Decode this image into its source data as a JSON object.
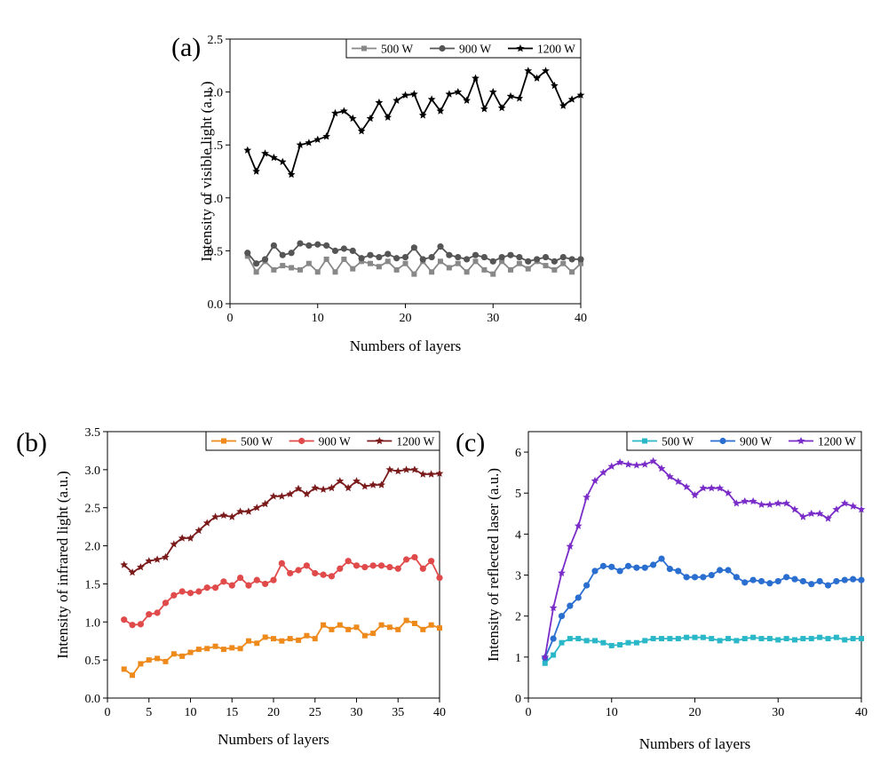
{
  "chart_data": [
    {
      "type": "line",
      "panel": "(a)",
      "xlabel": "Numbers of layers",
      "ylabel": "Intensity of visible light (a.u.)",
      "xlim": [
        0,
        40
      ],
      "ylim": [
        0.0,
        2.5
      ],
      "xticks": [
        0,
        10,
        20,
        30,
        40
      ],
      "yticks": [
        0.0,
        0.5,
        1.0,
        1.5,
        2.0,
        2.5
      ],
      "ytick_decimals": 1,
      "legend_position": "top-right",
      "series": [
        {
          "name": "500 W",
          "color": "#888888",
          "marker": "square",
          "x": [
            2,
            3,
            4,
            5,
            6,
            7,
            8,
            9,
            10,
            11,
            12,
            13,
            14,
            15,
            16,
            17,
            18,
            19,
            20,
            21,
            22,
            23,
            24,
            25,
            26,
            27,
            28,
            29,
            30,
            31,
            32,
            33,
            34,
            35,
            36,
            37,
            38,
            39,
            40
          ],
          "values": [
            0.45,
            0.3,
            0.4,
            0.32,
            0.36,
            0.34,
            0.32,
            0.38,
            0.3,
            0.42,
            0.3,
            0.42,
            0.33,
            0.4,
            0.38,
            0.35,
            0.4,
            0.32,
            0.38,
            0.28,
            0.4,
            0.3,
            0.4,
            0.34,
            0.38,
            0.3,
            0.4,
            0.32,
            0.28,
            0.4,
            0.32,
            0.38,
            0.33,
            0.4,
            0.36,
            0.32,
            0.38,
            0.3,
            0.38
          ]
        },
        {
          "name": "900 W",
          "color": "#555555",
          "marker": "circle",
          "x": [
            2,
            3,
            4,
            5,
            6,
            7,
            8,
            9,
            10,
            11,
            12,
            13,
            14,
            15,
            16,
            17,
            18,
            19,
            20,
            21,
            22,
            23,
            24,
            25,
            26,
            27,
            28,
            29,
            30,
            31,
            32,
            33,
            34,
            35,
            36,
            37,
            38,
            39,
            40
          ],
          "values": [
            0.48,
            0.38,
            0.42,
            0.55,
            0.46,
            0.48,
            0.57,
            0.55,
            0.56,
            0.55,
            0.5,
            0.52,
            0.5,
            0.43,
            0.46,
            0.44,
            0.47,
            0.43,
            0.44,
            0.53,
            0.42,
            0.44,
            0.54,
            0.46,
            0.44,
            0.42,
            0.46,
            0.44,
            0.4,
            0.44,
            0.46,
            0.44,
            0.4,
            0.42,
            0.44,
            0.4,
            0.44,
            0.42,
            0.42
          ]
        },
        {
          "name": "1200 W",
          "color": "#000000",
          "marker": "star",
          "x": [
            2,
            3,
            4,
            5,
            6,
            7,
            8,
            9,
            10,
            11,
            12,
            13,
            14,
            15,
            16,
            17,
            18,
            19,
            20,
            21,
            22,
            23,
            24,
            25,
            26,
            27,
            28,
            29,
            30,
            31,
            32,
            33,
            34,
            35,
            36,
            37,
            38,
            39,
            40
          ],
          "values": [
            1.45,
            1.25,
            1.42,
            1.38,
            1.34,
            1.22,
            1.5,
            1.52,
            1.55,
            1.58,
            1.8,
            1.82,
            1.75,
            1.63,
            1.75,
            1.9,
            1.76,
            1.92,
            1.97,
            1.98,
            1.78,
            1.93,
            1.82,
            1.98,
            2.0,
            1.92,
            2.13,
            1.84,
            2.0,
            1.85,
            1.96,
            1.94,
            2.2,
            2.13,
            2.2,
            2.06,
            1.87,
            1.93,
            1.97
          ]
        }
      ]
    },
    {
      "type": "line",
      "panel": "(b)",
      "xlabel": "Numbers of layers",
      "ylabel": "Intensity of infrared light (a.u.)",
      "xlim": [
        0,
        40
      ],
      "ylim": [
        0.0,
        3.5
      ],
      "xticks": [
        0,
        5,
        10,
        15,
        20,
        25,
        30,
        35,
        40
      ],
      "yticks": [
        0.0,
        0.5,
        1.0,
        1.5,
        2.0,
        2.5,
        3.0,
        3.5
      ],
      "ytick_decimals": 1,
      "legend_position": "top-right",
      "series": [
        {
          "name": "500 W",
          "color": "#ee8a1c",
          "marker": "square",
          "x": [
            2,
            3,
            4,
            5,
            6,
            7,
            8,
            9,
            10,
            11,
            12,
            13,
            14,
            15,
            16,
            17,
            18,
            19,
            20,
            21,
            22,
            23,
            24,
            25,
            26,
            27,
            28,
            29,
            30,
            31,
            32,
            33,
            34,
            35,
            36,
            37,
            38,
            39,
            40
          ],
          "values": [
            0.38,
            0.3,
            0.45,
            0.5,
            0.52,
            0.48,
            0.58,
            0.55,
            0.6,
            0.64,
            0.65,
            0.68,
            0.64,
            0.66,
            0.65,
            0.75,
            0.72,
            0.8,
            0.78,
            0.75,
            0.78,
            0.76,
            0.82,
            0.78,
            0.96,
            0.9,
            0.96,
            0.9,
            0.93,
            0.82,
            0.85,
            0.96,
            0.93,
            0.9,
            1.02,
            0.98,
            0.9,
            0.96,
            0.92
          ]
        },
        {
          "name": "900 W",
          "color": "#e04a4a",
          "marker": "circle",
          "x": [
            2,
            3,
            4,
            5,
            6,
            7,
            8,
            9,
            10,
            11,
            12,
            13,
            14,
            15,
            16,
            17,
            18,
            19,
            20,
            21,
            22,
            23,
            24,
            25,
            26,
            27,
            28,
            29,
            30,
            31,
            32,
            33,
            34,
            35,
            36,
            37,
            38,
            39,
            40
          ],
          "values": [
            1.03,
            0.96,
            0.97,
            1.1,
            1.12,
            1.25,
            1.35,
            1.4,
            1.38,
            1.4,
            1.45,
            1.45,
            1.53,
            1.48,
            1.58,
            1.48,
            1.55,
            1.5,
            1.55,
            1.77,
            1.64,
            1.68,
            1.74,
            1.64,
            1.62,
            1.6,
            1.7,
            1.8,
            1.74,
            1.72,
            1.74,
            1.74,
            1.72,
            1.7,
            1.82,
            1.85,
            1.7,
            1.8,
            1.58
          ]
        },
        {
          "name": "1200 W",
          "color": "#7a1a1a",
          "marker": "star",
          "x": [
            2,
            3,
            4,
            5,
            6,
            7,
            8,
            9,
            10,
            11,
            12,
            13,
            14,
            15,
            16,
            17,
            18,
            19,
            20,
            21,
            22,
            23,
            24,
            25,
            26,
            27,
            28,
            29,
            30,
            31,
            32,
            33,
            34,
            35,
            36,
            37,
            38,
            39,
            40
          ],
          "values": [
            1.75,
            1.65,
            1.72,
            1.8,
            1.82,
            1.85,
            2.02,
            2.1,
            2.1,
            2.2,
            2.3,
            2.38,
            2.4,
            2.38,
            2.45,
            2.45,
            2.5,
            2.55,
            2.65,
            2.65,
            2.68,
            2.75,
            2.68,
            2.76,
            2.74,
            2.76,
            2.85,
            2.76,
            2.85,
            2.78,
            2.8,
            2.8,
            3.0,
            2.98,
            3.0,
            3.0,
            2.94,
            2.94,
            2.95
          ]
        }
      ]
    },
    {
      "type": "line",
      "panel": "(c)",
      "xlabel": "Numbers of layers",
      "ylabel": "Intensity of reflected laser (a.u.)",
      "xlim": [
        0,
        40
      ],
      "ylim": [
        0,
        6.5
      ],
      "xticks": [
        0,
        10,
        20,
        30,
        40
      ],
      "yticks": [
        0,
        1,
        2,
        3,
        4,
        5,
        6
      ],
      "ytick_decimals": 0,
      "legend_position": "top-right",
      "series": [
        {
          "name": "500 W",
          "color": "#2ab8c8",
          "marker": "square",
          "x": [
            2,
            3,
            4,
            5,
            6,
            7,
            8,
            9,
            10,
            11,
            12,
            13,
            14,
            15,
            16,
            17,
            18,
            19,
            20,
            21,
            22,
            23,
            24,
            25,
            26,
            27,
            28,
            29,
            30,
            31,
            32,
            33,
            34,
            35,
            36,
            37,
            38,
            39,
            40
          ],
          "values": [
            0.85,
            1.05,
            1.35,
            1.45,
            1.45,
            1.4,
            1.4,
            1.35,
            1.28,
            1.3,
            1.35,
            1.35,
            1.4,
            1.45,
            1.45,
            1.45,
            1.45,
            1.48,
            1.48,
            1.48,
            1.45,
            1.4,
            1.45,
            1.4,
            1.45,
            1.48,
            1.45,
            1.45,
            1.42,
            1.45,
            1.42,
            1.45,
            1.45,
            1.48,
            1.45,
            1.48,
            1.42,
            1.45,
            1.45
          ]
        },
        {
          "name": "900 W",
          "color": "#2a6fd0",
          "marker": "circle",
          "x": [
            2,
            3,
            4,
            5,
            6,
            7,
            8,
            9,
            10,
            11,
            12,
            13,
            14,
            15,
            16,
            17,
            18,
            19,
            20,
            21,
            22,
            23,
            24,
            25,
            26,
            27,
            28,
            29,
            30,
            31,
            32,
            33,
            34,
            35,
            36,
            37,
            38,
            39,
            40
          ],
          "values": [
            0.98,
            1.45,
            2.0,
            2.25,
            2.45,
            2.75,
            3.1,
            3.22,
            3.2,
            3.1,
            3.22,
            3.18,
            3.18,
            3.25,
            3.4,
            3.15,
            3.1,
            2.95,
            2.95,
            2.95,
            3.0,
            3.12,
            3.12,
            2.95,
            2.82,
            2.88,
            2.85,
            2.8,
            2.85,
            2.95,
            2.9,
            2.85,
            2.78,
            2.85,
            2.75,
            2.85,
            2.88,
            2.9,
            2.88
          ]
        },
        {
          "name": "1200 W",
          "color": "#7a2cc8",
          "marker": "star",
          "x": [
            2,
            3,
            4,
            5,
            6,
            7,
            8,
            9,
            10,
            11,
            12,
            13,
            14,
            15,
            16,
            17,
            18,
            19,
            20,
            21,
            22,
            23,
            24,
            25,
            26,
            27,
            28,
            29,
            30,
            31,
            32,
            33,
            34,
            35,
            36,
            37,
            38,
            39,
            40
          ],
          "values": [
            1.0,
            2.2,
            3.05,
            3.7,
            4.2,
            4.9,
            5.3,
            5.5,
            5.65,
            5.75,
            5.7,
            5.68,
            5.7,
            5.78,
            5.6,
            5.4,
            5.28,
            5.15,
            4.95,
            5.12,
            5.12,
            5.12,
            5.0,
            4.75,
            4.8,
            4.8,
            4.72,
            4.72,
            4.75,
            4.75,
            4.6,
            4.42,
            4.5,
            4.5,
            4.38,
            4.6,
            4.75,
            4.68,
            4.6
          ]
        }
      ]
    }
  ]
}
